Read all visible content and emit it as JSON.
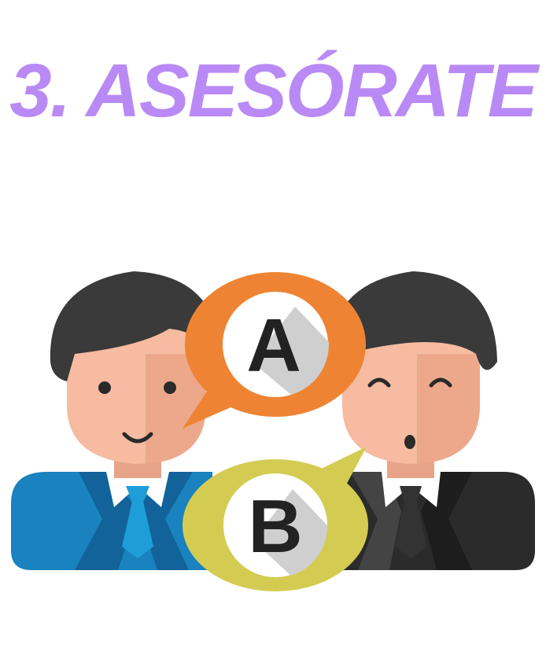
{
  "headline": {
    "text": "3. ASESÓRATE",
    "color": "#b98af5"
  },
  "illustration": {
    "bubble_a": {
      "letter": "A",
      "color": "#ee8433"
    },
    "bubble_b": {
      "letter": "B",
      "color": "#d4cc52"
    },
    "left_person": {
      "suit_color": "#1a82bf",
      "tie_color": "#1e9ed9"
    },
    "right_person": {
      "suit_color": "#2b2b2b",
      "tie_color": "#333333"
    },
    "skin_color": "#f6bba0",
    "hair_color": "#3a3a3a"
  }
}
